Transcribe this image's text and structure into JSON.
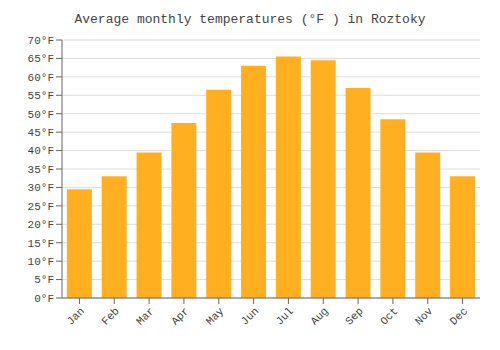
{
  "chart_data": {
    "type": "bar",
    "title": "Average monthly temperatures (°F ) in Roztoky",
    "categories": [
      "Jan",
      "Feb",
      "Mar",
      "Apr",
      "May",
      "Jun",
      "Jul",
      "Aug",
      "Sep",
      "Oct",
      "Nov",
      "Dec"
    ],
    "values": [
      29.5,
      33.0,
      39.5,
      47.5,
      56.5,
      63.0,
      65.5,
      64.5,
      57.0,
      48.5,
      39.5,
      33.0
    ],
    "color": "#FFAF20",
    "ylim": [
      0,
      70
    ],
    "yticks": [
      {
        "value": 0,
        "label": "0°F"
      },
      {
        "value": 5,
        "label": "5°F"
      },
      {
        "value": 10,
        "label": "10°F"
      },
      {
        "value": 15,
        "label": "15°F"
      },
      {
        "value": 20,
        "label": "20°F"
      },
      {
        "value": 25,
        "label": "25°F"
      },
      {
        "value": 30,
        "label": "30°F"
      },
      {
        "value": 35,
        "label": "35°F"
      },
      {
        "value": 40,
        "label": "40°F"
      },
      {
        "value": 45,
        "label": "45°F"
      },
      {
        "value": 50,
        "label": "50°F"
      },
      {
        "value": 55,
        "label": "55°F"
      },
      {
        "value": 60,
        "label": "60°F"
      },
      {
        "value": 65,
        "label": "65°F"
      },
      {
        "value": 70,
        "label": "70°F"
      }
    ],
    "grid": true
  }
}
